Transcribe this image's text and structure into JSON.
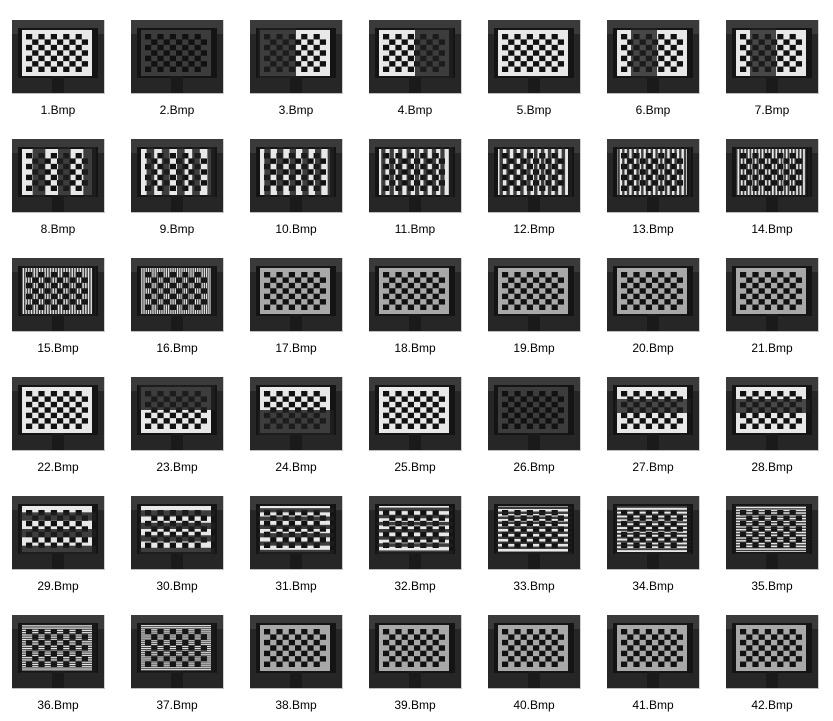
{
  "files": [
    {
      "name": "1.Bmp",
      "light": "full",
      "stripes": 0
    },
    {
      "name": "2.Bmp",
      "light": "dark",
      "stripes": 0
    },
    {
      "name": "3.Bmp",
      "light": "right-half",
      "stripes": 0
    },
    {
      "name": "4.Bmp",
      "light": "left-half",
      "stripes": 0
    },
    {
      "name": "5.Bmp",
      "light": "full",
      "stripes": 0
    },
    {
      "name": "6.Bmp",
      "light": "band",
      "stripes": 2
    },
    {
      "name": "7.Bmp",
      "light": "band",
      "stripes": 2
    },
    {
      "name": "8.Bmp",
      "light": "vertical",
      "stripes": 3
    },
    {
      "name": "9.Bmp",
      "light": "vertical",
      "stripes": 5
    },
    {
      "name": "10.Bmp",
      "light": "vertical",
      "stripes": 6
    },
    {
      "name": "11.Bmp",
      "light": "vertical",
      "stripes": 9
    },
    {
      "name": "12.Bmp",
      "light": "vertical",
      "stripes": 11
    },
    {
      "name": "13.Bmp",
      "light": "vertical",
      "stripes": 16
    },
    {
      "name": "14.Bmp",
      "light": "vertical",
      "stripes": 22
    },
    {
      "name": "15.Bmp",
      "light": "vertical",
      "stripes": 28
    },
    {
      "name": "16.Bmp",
      "light": "vertical",
      "stripes": 34
    },
    {
      "name": "17.Bmp",
      "light": "gray",
      "stripes": 0
    },
    {
      "name": "18.Bmp",
      "light": "gray",
      "stripes": 0
    },
    {
      "name": "19.Bmp",
      "light": "gray",
      "stripes": 0
    },
    {
      "name": "20.Bmp",
      "light": "gray",
      "stripes": 0
    },
    {
      "name": "21.Bmp",
      "light": "gray",
      "stripes": 0
    },
    {
      "name": "22.Bmp",
      "light": "full",
      "stripes": 0
    },
    {
      "name": "23.Bmp",
      "light": "bottom-half",
      "stripes": 0
    },
    {
      "name": "24.Bmp",
      "light": "top-half",
      "stripes": 0
    },
    {
      "name": "25.Bmp",
      "light": "full",
      "stripes": 0
    },
    {
      "name": "26.Bmp",
      "light": "dark",
      "stripes": 0
    },
    {
      "name": "27.Bmp",
      "light": "hband",
      "stripes": 2
    },
    {
      "name": "28.Bmp",
      "light": "hband",
      "stripes": 2
    },
    {
      "name": "29.Bmp",
      "light": "horizontal",
      "stripes": 3
    },
    {
      "name": "30.Bmp",
      "light": "horizontal",
      "stripes": 4
    },
    {
      "name": "31.Bmp",
      "light": "horizontal",
      "stripes": 6
    },
    {
      "name": "32.Bmp",
      "light": "horizontal",
      "stripes": 7
    },
    {
      "name": "33.Bmp",
      "light": "horizontal",
      "stripes": 10
    },
    {
      "name": "34.Bmp",
      "light": "horizontal",
      "stripes": 13
    },
    {
      "name": "35.Bmp",
      "light": "horizontal",
      "stripes": 18
    },
    {
      "name": "36.Bmp",
      "light": "horizontal",
      "stripes": 22
    },
    {
      "name": "37.Bmp",
      "light": "horizontal",
      "stripes": 26
    },
    {
      "name": "38.Bmp",
      "light": "gray",
      "stripes": 0
    },
    {
      "name": "39.Bmp",
      "light": "gray",
      "stripes": 0
    },
    {
      "name": "40.Bmp",
      "light": "gray",
      "stripes": 0
    },
    {
      "name": "41.Bmp",
      "light": "gray",
      "stripes": 0
    },
    {
      "name": "42.Bmp",
      "light": "gray",
      "stripes": 0
    }
  ],
  "colors": {
    "background": "#ffffff",
    "caption_text": "#000000",
    "thumb_background": "#1c1c1c"
  },
  "icons": {
    "thumbnail": "bmp-image-thumbnail-icon"
  }
}
